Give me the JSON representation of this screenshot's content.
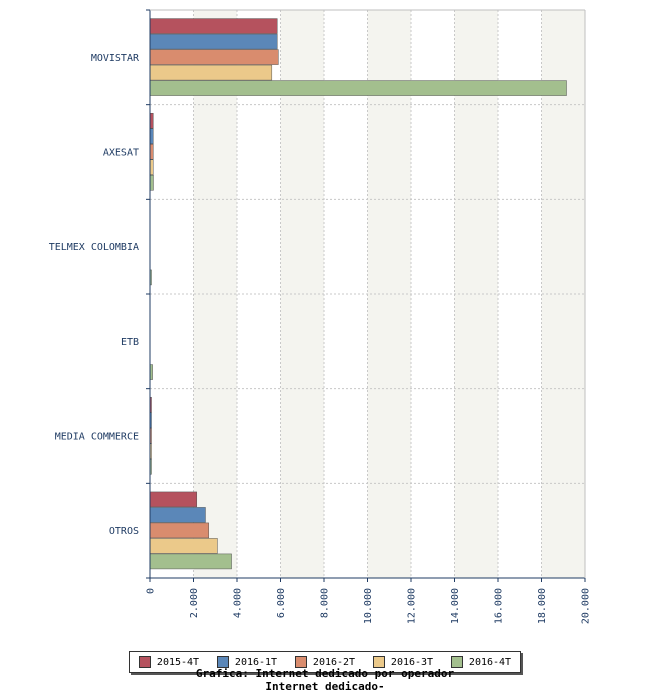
{
  "chart_data": {
    "type": "bar",
    "orientation": "horizontal",
    "categories": [
      "MOVISTAR",
      "AXESAT",
      "TELMEX COLOMBIA",
      "ETB",
      "MEDIA COMMERCE",
      "OTROS"
    ],
    "series": [
      {
        "name": "2015-4T",
        "color": "#b5525e",
        "values": [
          5850,
          150,
          0,
          0,
          40,
          2150
        ]
      },
      {
        "name": "2016-1T",
        "color": "#5b87b8",
        "values": [
          5850,
          150,
          0,
          0,
          40,
          2550
        ]
      },
      {
        "name": "2016-2T",
        "color": "#d98c6e",
        "values": [
          5900,
          150,
          0,
          0,
          40,
          2700
        ]
      },
      {
        "name": "2016-3T",
        "color": "#ebc98a",
        "values": [
          5600,
          150,
          0,
          0,
          40,
          3100
        ]
      },
      {
        "name": "2016-4T",
        "color": "#a3bf8e",
        "values": [
          19150,
          160,
          50,
          120,
          40,
          3750
        ]
      }
    ],
    "xticks": [
      "0",
      "2.000",
      "4.000",
      "6.000",
      "8.000",
      "10.000",
      "12.000",
      "14.000",
      "16.000",
      "18.000",
      "20.000"
    ],
    "xlim": [
      0,
      20000
    ],
    "grid": true,
    "legend_position": "bottom"
  },
  "footer": {
    "line1": "Grafica: Internet dedicado por operador",
    "line2": "Internet dedicado-"
  }
}
